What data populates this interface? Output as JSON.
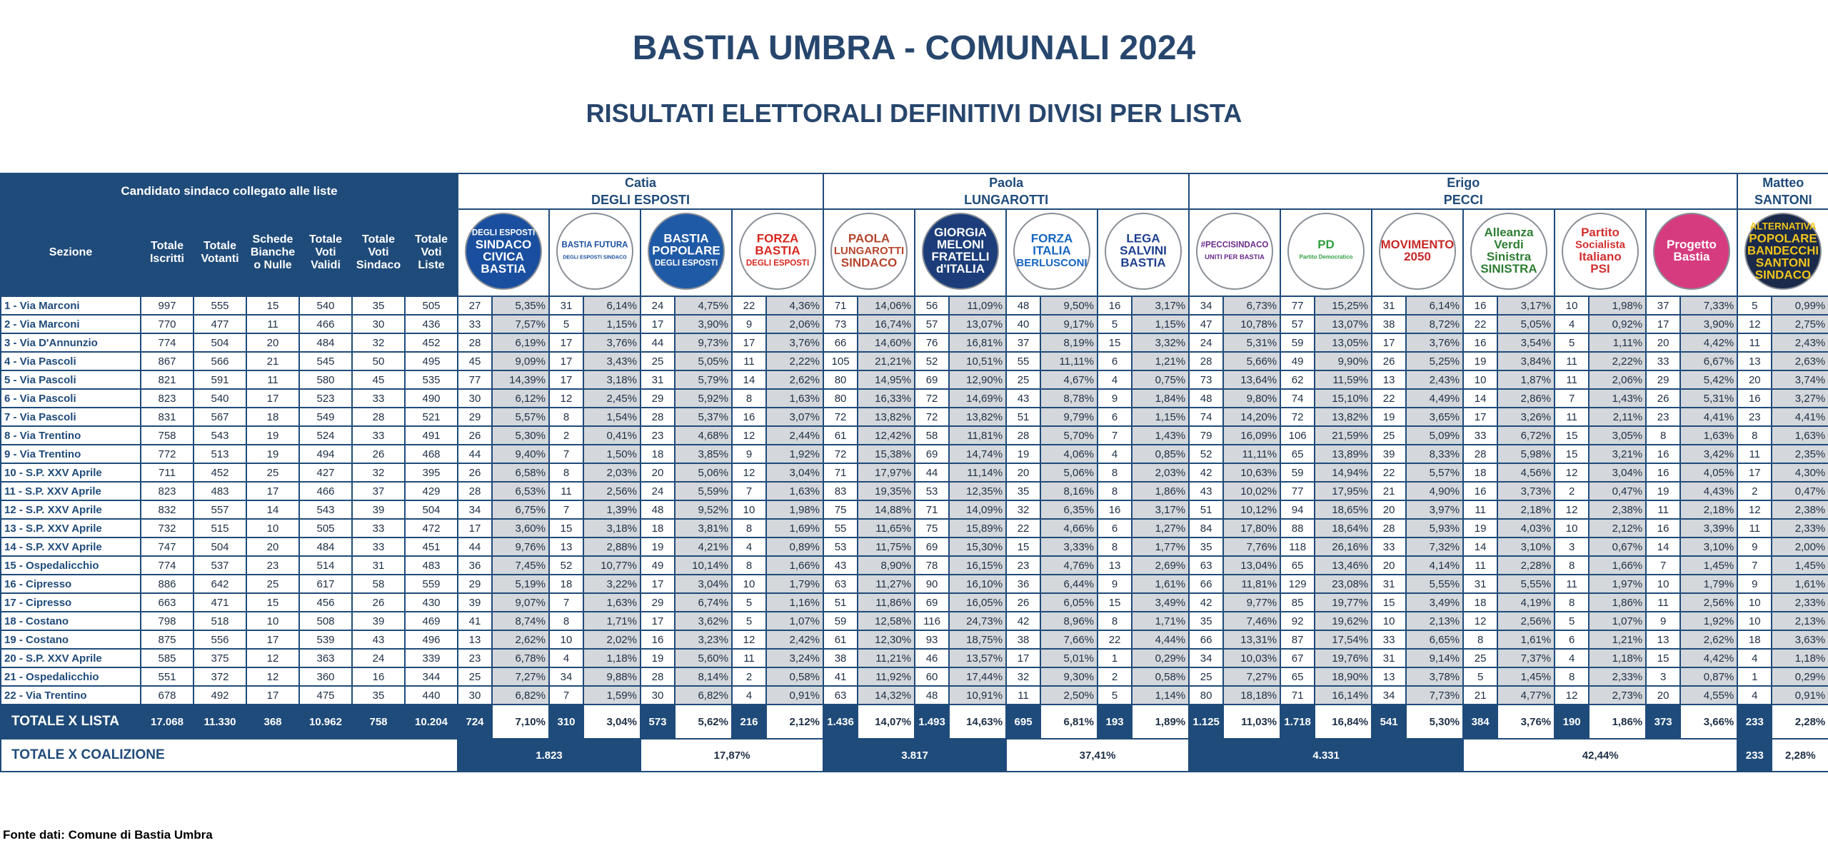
{
  "header": {
    "title": "BASTIA UMBRA - COMUNALI 2024",
    "subtitle": "RISULTATI ELETTORALI DEFINITIVI DIVISI PER LISTA"
  },
  "table": {
    "caption_cell": "Candidato sindaco collegato alle liste",
    "columns": [
      "Sezione",
      "Totale Iscritti",
      "Totale Votanti",
      "Schede Bianche o Nulle",
      "Totale Voti Validi",
      "Totale Voti Sindaco",
      "Totale Voti Liste"
    ],
    "candidates": [
      {
        "name": [
          "Catia",
          "DEGLI ESPOSTI"
        ],
        "coalition": {
          "votes": "1.823",
          "pct": "17,87%"
        },
        "lists": [
          {
            "text": [
              "DEGLI ESPOSTI",
              "SINDACO",
              "CIVICA",
              "BASTIA"
            ],
            "bg": "#1a4fa0",
            "fg": "#ffffff"
          },
          {
            "text": [
              "BASTIA FUTURA",
              "DEGLI ESPOSTI SINDACO"
            ],
            "bg": "#ffffff",
            "fg": "#1a4fa0"
          },
          {
            "text": [
              "BASTIA",
              "POPOLARE",
              "DEGLI ESPOSTI"
            ],
            "bg": "#1f5aa6",
            "fg": "#ffffff"
          },
          {
            "text": [
              "FORZA",
              "BASTIA",
              "DEGLI ESPOSTI"
            ],
            "bg": "#ffffff",
            "fg": "#d7261e"
          }
        ]
      },
      {
        "name": [
          "Paola",
          "LUNGAROTTI"
        ],
        "coalition": {
          "votes": "3.817",
          "pct": "37,41%"
        },
        "lists": [
          {
            "text": [
              "PAOLA",
              "LUNGAROTTI",
              "SINDACO"
            ],
            "bg": "#ffffff",
            "fg": "#b5452d"
          },
          {
            "text": [
              "GIORGIA",
              "MELONI",
              "FRATELLI",
              "d'ITALIA"
            ],
            "bg": "#1c3d7a",
            "fg": "#ffffff"
          },
          {
            "text": [
              "FORZA",
              "ITALIA",
              "BERLUSCONI"
            ],
            "bg": "#ffffff",
            "fg": "#1565c0"
          },
          {
            "text": [
              "LEGA",
              "SALVINI",
              "BASTIA"
            ],
            "bg": "#ffffff",
            "fg": "#1d3f8f"
          }
        ]
      },
      {
        "name": [
          "Erigo",
          "PECCI"
        ],
        "coalition": {
          "votes": "4.331",
          "pct": "42,44%"
        },
        "lists": [
          {
            "text": [
              "#PECCISINDACO",
              "UNITI PER BASTIA"
            ],
            "bg": "#ffffff",
            "fg": "#6a2a8a"
          },
          {
            "text": [
              "PD",
              "Partito Democratico"
            ],
            "bg": "#ffffff",
            "fg": "#2e9f3e"
          },
          {
            "text": [
              "MOVIMENTO",
              "2050"
            ],
            "bg": "#ffffff",
            "fg": "#c62828"
          },
          {
            "text": [
              "Alleanza",
              "Verdi",
              "Sinistra",
              "SINISTRA"
            ],
            "bg": "#ffffff",
            "fg": "#2e7d32"
          },
          {
            "text": [
              "Partito",
              "Socialista",
              "Italiano",
              "PSI"
            ],
            "bg": "#ffffff",
            "fg": "#d32f2f"
          },
          {
            "text": [
              "Progetto",
              "Bastia"
            ],
            "bg": "#d63b7f",
            "fg": "#ffffff"
          }
        ]
      },
      {
        "name": [
          "Matteo",
          "SANTONI"
        ],
        "coalition": {
          "votes": "233",
          "pct": "2,28%"
        },
        "lists": [
          {
            "text": [
              "ALTERNATIVA",
              "POPOLARE",
              "BANDECCHI",
              "SANTONI",
              "SINDACO"
            ],
            "bg": "#1b2a4a",
            "fg": "#f0c419"
          }
        ]
      }
    ],
    "rows": [
      [
        "1 - Via Marconi",
        "997",
        "555",
        "15",
        "540",
        "35",
        "505",
        "27",
        "5,35%",
        "31",
        "6,14%",
        "24",
        "4,75%",
        "22",
        "4,36%",
        "71",
        "14,06%",
        "56",
        "11,09%",
        "48",
        "9,50%",
        "16",
        "3,17%",
        "34",
        "6,73%",
        "77",
        "15,25%",
        "31",
        "6,14%",
        "16",
        "3,17%",
        "10",
        "1,98%",
        "37",
        "7,33%",
        "5",
        "0,99%"
      ],
      [
        "2 - Via Marconi",
        "770",
        "477",
        "11",
        "466",
        "30",
        "436",
        "33",
        "7,57%",
        "5",
        "1,15%",
        "17",
        "3,90%",
        "9",
        "2,06%",
        "73",
        "16,74%",
        "57",
        "13,07%",
        "40",
        "9,17%",
        "5",
        "1,15%",
        "47",
        "10,78%",
        "57",
        "13,07%",
        "38",
        "8,72%",
        "22",
        "5,05%",
        "4",
        "0,92%",
        "17",
        "3,90%",
        "12",
        "2,75%"
      ],
      [
        "3 - Via D'Annunzio",
        "774",
        "504",
        "20",
        "484",
        "32",
        "452",
        "28",
        "6,19%",
        "17",
        "3,76%",
        "44",
        "9,73%",
        "17",
        "3,76%",
        "66",
        "14,60%",
        "76",
        "16,81%",
        "37",
        "8,19%",
        "15",
        "3,32%",
        "24",
        "5,31%",
        "59",
        "13,05%",
        "17",
        "3,76%",
        "16",
        "3,54%",
        "5",
        "1,11%",
        "20",
        "4,42%",
        "11",
        "2,43%"
      ],
      [
        "4 - Via Pascoli",
        "867",
        "566",
        "21",
        "545",
        "50",
        "495",
        "45",
        "9,09%",
        "17",
        "3,43%",
        "25",
        "5,05%",
        "11",
        "2,22%",
        "105",
        "21,21%",
        "52",
        "10,51%",
        "55",
        "11,11%",
        "6",
        "1,21%",
        "28",
        "5,66%",
        "49",
        "9,90%",
        "26",
        "5,25%",
        "19",
        "3,84%",
        "11",
        "2,22%",
        "33",
        "6,67%",
        "13",
        "2,63%"
      ],
      [
        "5 - Via Pascoli",
        "821",
        "591",
        "11",
        "580",
        "45",
        "535",
        "77",
        "14,39%",
        "17",
        "3,18%",
        "31",
        "5,79%",
        "14",
        "2,62%",
        "80",
        "14,95%",
        "69",
        "12,90%",
        "25",
        "4,67%",
        "4",
        "0,75%",
        "73",
        "13,64%",
        "62",
        "11,59%",
        "13",
        "2,43%",
        "10",
        "1,87%",
        "11",
        "2,06%",
        "29",
        "5,42%",
        "20",
        "3,74%"
      ],
      [
        "6 - Via Pascoli",
        "823",
        "540",
        "17",
        "523",
        "33",
        "490",
        "30",
        "6,12%",
        "12",
        "2,45%",
        "29",
        "5,92%",
        "8",
        "1,63%",
        "80",
        "16,33%",
        "72",
        "14,69%",
        "43",
        "8,78%",
        "9",
        "1,84%",
        "48",
        "9,80%",
        "74",
        "15,10%",
        "22",
        "4,49%",
        "14",
        "2,86%",
        "7",
        "1,43%",
        "26",
        "5,31%",
        "16",
        "3,27%"
      ],
      [
        "7 - Via Pascoli",
        "831",
        "567",
        "18",
        "549",
        "28",
        "521",
        "29",
        "5,57%",
        "8",
        "1,54%",
        "28",
        "5,37%",
        "16",
        "3,07%",
        "72",
        "13,82%",
        "72",
        "13,82%",
        "51",
        "9,79%",
        "6",
        "1,15%",
        "74",
        "14,20%",
        "72",
        "13,82%",
        "19",
        "3,65%",
        "17",
        "3,26%",
        "11",
        "2,11%",
        "23",
        "4,41%",
        "23",
        "4,41%"
      ],
      [
        "8 - Via Trentino",
        "758",
        "543",
        "19",
        "524",
        "33",
        "491",
        "26",
        "5,30%",
        "2",
        "0,41%",
        "23",
        "4,68%",
        "12",
        "2,44%",
        "61",
        "12,42%",
        "58",
        "11,81%",
        "28",
        "5,70%",
        "7",
        "1,43%",
        "79",
        "16,09%",
        "106",
        "21,59%",
        "25",
        "5,09%",
        "33",
        "6,72%",
        "15",
        "3,05%",
        "8",
        "1,63%",
        "8",
        "1,63%"
      ],
      [
        "9 - Via Trentino",
        "772",
        "513",
        "19",
        "494",
        "26",
        "468",
        "44",
        "9,40%",
        "7",
        "1,50%",
        "18",
        "3,85%",
        "9",
        "1,92%",
        "72",
        "15,38%",
        "69",
        "14,74%",
        "19",
        "4,06%",
        "4",
        "0,85%",
        "52",
        "11,11%",
        "65",
        "13,89%",
        "39",
        "8,33%",
        "28",
        "5,98%",
        "15",
        "3,21%",
        "16",
        "3,42%",
        "11",
        "2,35%"
      ],
      [
        "10 - S.P. XXV Aprile",
        "711",
        "452",
        "25",
        "427",
        "32",
        "395",
        "26",
        "6,58%",
        "8",
        "2,03%",
        "20",
        "5,06%",
        "12",
        "3,04%",
        "71",
        "17,97%",
        "44",
        "11,14%",
        "20",
        "5,06%",
        "8",
        "2,03%",
        "42",
        "10,63%",
        "59",
        "14,94%",
        "22",
        "5,57%",
        "18",
        "4,56%",
        "12",
        "3,04%",
        "16",
        "4,05%",
        "17",
        "4,30%"
      ],
      [
        "11 - S.P. XXV Aprile",
        "823",
        "483",
        "17",
        "466",
        "37",
        "429",
        "28",
        "6,53%",
        "11",
        "2,56%",
        "24",
        "5,59%",
        "7",
        "1,63%",
        "83",
        "19,35%",
        "53",
        "12,35%",
        "35",
        "8,16%",
        "8",
        "1,86%",
        "43",
        "10,02%",
        "77",
        "17,95%",
        "21",
        "4,90%",
        "16",
        "3,73%",
        "2",
        "0,47%",
        "19",
        "4,43%",
        "2",
        "0,47%"
      ],
      [
        "12 - S.P. XXV Aprile",
        "832",
        "557",
        "14",
        "543",
        "39",
        "504",
        "34",
        "6,75%",
        "7",
        "1,39%",
        "48",
        "9,52%",
        "10",
        "1,98%",
        "75",
        "14,88%",
        "71",
        "14,09%",
        "32",
        "6,35%",
        "16",
        "3,17%",
        "51",
        "10,12%",
        "94",
        "18,65%",
        "20",
        "3,97%",
        "11",
        "2,18%",
        "12",
        "2,38%",
        "11",
        "2,18%",
        "12",
        "2,38%"
      ],
      [
        "13 - S.P. XXV Aprile",
        "732",
        "515",
        "10",
        "505",
        "33",
        "472",
        "17",
        "3,60%",
        "15",
        "3,18%",
        "18",
        "3,81%",
        "8",
        "1,69%",
        "55",
        "11,65%",
        "75",
        "15,89%",
        "22",
        "4,66%",
        "6",
        "1,27%",
        "84",
        "17,80%",
        "88",
        "18,64%",
        "28",
        "5,93%",
        "19",
        "4,03%",
        "10",
        "2,12%",
        "16",
        "3,39%",
        "11",
        "2,33%"
      ],
      [
        "14 - S.P. XXV Aprile",
        "747",
        "504",
        "20",
        "484",
        "33",
        "451",
        "44",
        "9,76%",
        "13",
        "2,88%",
        "19",
        "4,21%",
        "4",
        "0,89%",
        "53",
        "11,75%",
        "69",
        "15,30%",
        "15",
        "3,33%",
        "8",
        "1,77%",
        "35",
        "7,76%",
        "118",
        "26,16%",
        "33",
        "7,32%",
        "14",
        "3,10%",
        "3",
        "0,67%",
        "14",
        "3,10%",
        "9",
        "2,00%"
      ],
      [
        "15 - Ospedalicchio",
        "774",
        "537",
        "23",
        "514",
        "31",
        "483",
        "36",
        "7,45%",
        "52",
        "10,77%",
        "49",
        "10,14%",
        "8",
        "1,66%",
        "43",
        "8,90%",
        "78",
        "16,15%",
        "23",
        "4,76%",
        "13",
        "2,69%",
        "63",
        "13,04%",
        "65",
        "13,46%",
        "20",
        "4,14%",
        "11",
        "2,28%",
        "8",
        "1,66%",
        "7",
        "1,45%",
        "7",
        "1,45%"
      ],
      [
        "16 - Cipresso",
        "886",
        "642",
        "25",
        "617",
        "58",
        "559",
        "29",
        "5,19%",
        "18",
        "3,22%",
        "17",
        "3,04%",
        "10",
        "1,79%",
        "63",
        "11,27%",
        "90",
        "16,10%",
        "36",
        "6,44%",
        "9",
        "1,61%",
        "66",
        "11,81%",
        "129",
        "23,08%",
        "31",
        "5,55%",
        "31",
        "5,55%",
        "11",
        "1,97%",
        "10",
        "1,79%",
        "9",
        "1,61%"
      ],
      [
        "17 - Cipresso",
        "663",
        "471",
        "15",
        "456",
        "26",
        "430",
        "39",
        "9,07%",
        "7",
        "1,63%",
        "29",
        "6,74%",
        "5",
        "1,16%",
        "51",
        "11,86%",
        "69",
        "16,05%",
        "26",
        "6,05%",
        "15",
        "3,49%",
        "42",
        "9,77%",
        "85",
        "19,77%",
        "15",
        "3,49%",
        "18",
        "4,19%",
        "8",
        "1,86%",
        "11",
        "2,56%",
        "10",
        "2,33%"
      ],
      [
        "18 - Costano",
        "798",
        "518",
        "10",
        "508",
        "39",
        "469",
        "41",
        "8,74%",
        "8",
        "1,71%",
        "17",
        "3,62%",
        "5",
        "1,07%",
        "59",
        "12,58%",
        "116",
        "24,73%",
        "42",
        "8,96%",
        "8",
        "1,71%",
        "35",
        "7,46%",
        "92",
        "19,62%",
        "10",
        "2,13%",
        "12",
        "2,56%",
        "5",
        "1,07%",
        "9",
        "1,92%",
        "10",
        "2,13%"
      ],
      [
        "19 - Costano",
        "875",
        "556",
        "17",
        "539",
        "43",
        "496",
        "13",
        "2,62%",
        "10",
        "2,02%",
        "16",
        "3,23%",
        "12",
        "2,42%",
        "61",
        "12,30%",
        "93",
        "18,75%",
        "38",
        "7,66%",
        "22",
        "4,44%",
        "66",
        "13,31%",
        "87",
        "17,54%",
        "33",
        "6,65%",
        "8",
        "1,61%",
        "6",
        "1,21%",
        "13",
        "2,62%",
        "18",
        "3,63%"
      ],
      [
        "20 - S.P. XXV Aprile",
        "585",
        "375",
        "12",
        "363",
        "24",
        "339",
        "23",
        "6,78%",
        "4",
        "1,18%",
        "19",
        "5,60%",
        "11",
        "3,24%",
        "38",
        "11,21%",
        "46",
        "13,57%",
        "17",
        "5,01%",
        "1",
        "0,29%",
        "34",
        "10,03%",
        "67",
        "19,76%",
        "31",
        "9,14%",
        "25",
        "7,37%",
        "4",
        "1,18%",
        "15",
        "4,42%",
        "4",
        "1,18%"
      ],
      [
        "21 - Ospedalicchio",
        "551",
        "372",
        "12",
        "360",
        "16",
        "344",
        "25",
        "7,27%",
        "34",
        "9,88%",
        "28",
        "8,14%",
        "2",
        "0,58%",
        "41",
        "11,92%",
        "60",
        "17,44%",
        "32",
        "9,30%",
        "2",
        "0,58%",
        "25",
        "7,27%",
        "65",
        "18,90%",
        "13",
        "3,78%",
        "5",
        "1,45%",
        "8",
        "2,33%",
        "3",
        "0,87%",
        "1",
        "0,29%"
      ],
      [
        "22 - Via Trentino",
        "678",
        "492",
        "17",
        "475",
        "35",
        "440",
        "30",
        "6,82%",
        "7",
        "1,59%",
        "30",
        "6,82%",
        "4",
        "0,91%",
        "63",
        "14,32%",
        "48",
        "10,91%",
        "11",
        "2,50%",
        "5",
        "1,14%",
        "80",
        "18,18%",
        "71",
        "16,14%",
        "34",
        "7,73%",
        "21",
        "4,77%",
        "12",
        "2,73%",
        "20",
        "4,55%",
        "4",
        "0,91%"
      ]
    ],
    "total_row": [
      "TOTALE X LISTA",
      "17.068",
      "11.330",
      "368",
      "10.962",
      "758",
      "10.204",
      "724",
      "7,10%",
      "310",
      "3,04%",
      "573",
      "5,62%",
      "216",
      "2,12%",
      "1.436",
      "14,07%",
      "1.493",
      "14,63%",
      "695",
      "6,81%",
      "193",
      "1,89%",
      "1.125",
      "11,03%",
      "1.718",
      "16,84%",
      "541",
      "5,30%",
      "384",
      "3,76%",
      "190",
      "1,86%",
      "373",
      "3,66%",
      "233",
      "2,28%"
    ],
    "coalition_label": "TOTALE X COALIZIONE"
  },
  "footer": "Fonte dati: Comune di Bastia Umbra"
}
